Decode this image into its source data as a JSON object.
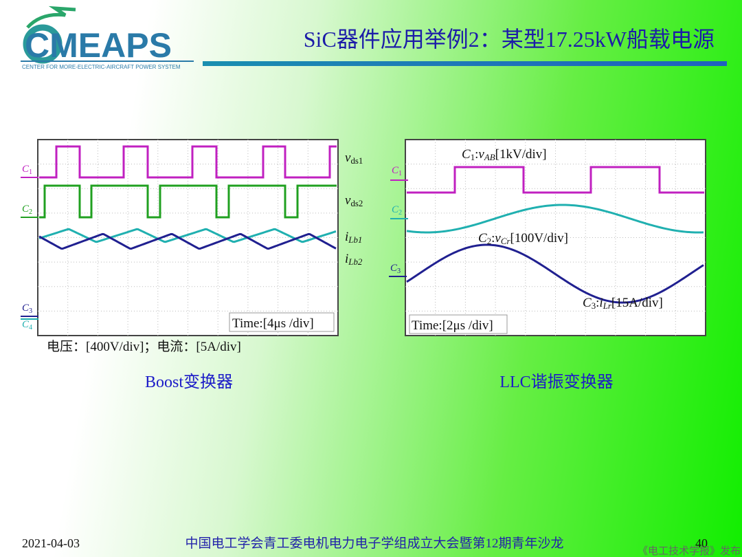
{
  "header": {
    "logo": "CMEAPS",
    "logo_subtitle": "CENTER FOR MORE-ELECTRIC-AIRCRAFT POWER SYSTEM",
    "title": "SiC器件应用举例2：某型17.25kW船载电源"
  },
  "panels": [
    {
      "caption": "Boost变换器",
      "scale_note": "电压：[400V/div]；电流：[5A/div]",
      "time_label": "Time:[4μs /div]",
      "channels": [
        {
          "ch": "C",
          "ch_sub": "1"
        },
        {
          "ch": "C",
          "ch_sub": "2"
        },
        {
          "ch": "C",
          "ch_sub": "3"
        },
        {
          "ch": "C",
          "ch_sub": "4"
        }
      ],
      "trace_labels": [
        {
          "var": "v",
          "var_sub": "ds1"
        },
        {
          "var": "v",
          "var_sub": "ds2"
        },
        {
          "var": "i",
          "var_sub": "Lb1"
        },
        {
          "var": "i",
          "var_sub": "Lb2"
        }
      ]
    },
    {
      "caption": "LLC谐振变换器",
      "time_label": "Time:[2μs /div]",
      "channels": [
        {
          "ch": "C",
          "ch_sub": "1"
        },
        {
          "ch": "C",
          "ch_sub": "2"
        },
        {
          "ch": "C",
          "ch_sub": "3"
        }
      ],
      "trace_labels": [
        {
          "ch": "C",
          "ch_sub": "1",
          "sep": ":",
          "var": "v",
          "var_sub": "AB",
          "scale": "[1kV/div]"
        },
        {
          "ch": "C",
          "ch_sub": "2",
          "sep": ":",
          "var": "v",
          "var_sub": "Cr",
          "scale": "[100V/div]"
        },
        {
          "ch": "C",
          "ch_sub": "3",
          "sep": ":",
          "var": "i",
          "var_sub": "Lr",
          "scale": "[15A/div]"
        }
      ]
    }
  ],
  "footer": {
    "date": "2021-04-03",
    "event": "中国电工学会青工委电机电力电子学组成立大会暨第12期青年沙龙",
    "page": "40",
    "source": "《电工技术学报》发布"
  }
}
